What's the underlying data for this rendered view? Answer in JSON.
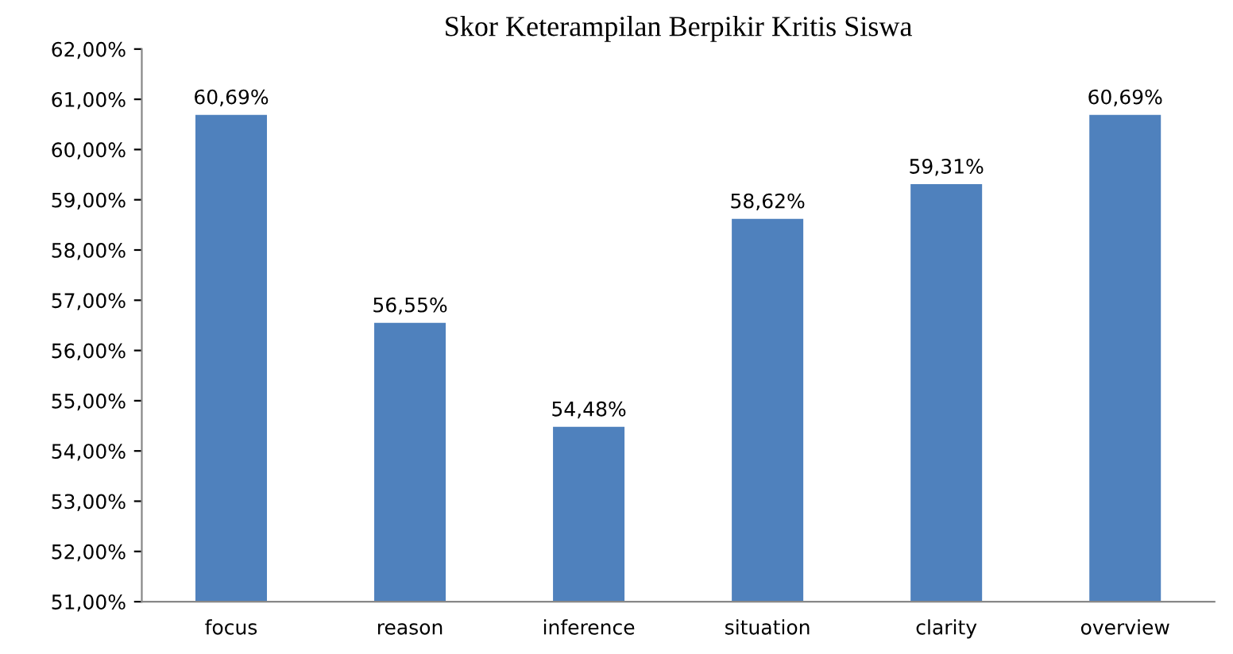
{
  "chart_data": {
    "type": "bar",
    "title": "Skor Keterampilan Berpikir Kritis Siswa",
    "categories": [
      "focus",
      "reason",
      "inference",
      "situation",
      "clarity",
      "overview"
    ],
    "values": [
      60.69,
      56.55,
      54.48,
      58.62,
      59.31,
      60.69
    ],
    "value_labels": [
      "60,69%",
      "56,55%",
      "54,48%",
      "58,62%",
      "59,31%",
      "60,69%"
    ],
    "color": "#4f81bd",
    "ylim": [
      51,
      62
    ],
    "yticks": [
      {
        "value": 51,
        "label": "51,00%"
      },
      {
        "value": 52,
        "label": "52,00%"
      },
      {
        "value": 53,
        "label": "53,00%"
      },
      {
        "value": 54,
        "label": "54,00%"
      },
      {
        "value": 55,
        "label": "55,00%"
      },
      {
        "value": 56,
        "label": "56,00%"
      },
      {
        "value": 57,
        "label": "57,00%"
      },
      {
        "value": 58,
        "label": "58,00%"
      },
      {
        "value": 59,
        "label": "59,00%"
      },
      {
        "value": 60,
        "label": "60,00%"
      },
      {
        "value": 61,
        "label": "61,00%"
      },
      {
        "value": 62,
        "label": "62,00%"
      }
    ],
    "grid": false
  }
}
